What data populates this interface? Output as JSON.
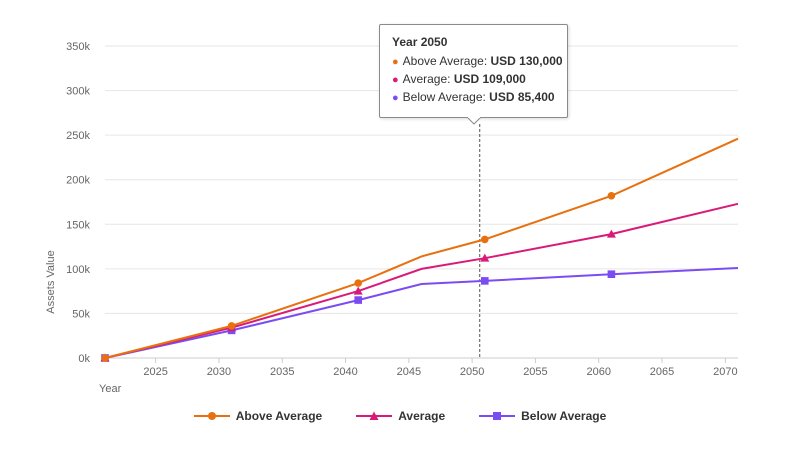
{
  "chart_data": {
    "type": "line",
    "title": "",
    "xlabel": "Year",
    "ylabel": "Assets Value",
    "xlim": [
      2021,
      2071
    ],
    "ylim": [
      0,
      350000
    ],
    "x_ticks": [
      2025,
      2030,
      2035,
      2040,
      2045,
      2050,
      2055,
      2060,
      2065,
      2070
    ],
    "y_ticks": [
      0,
      50000,
      100000,
      150000,
      200000,
      250000,
      300000,
      350000
    ],
    "y_tick_labels": [
      "0k",
      "50k",
      "100k",
      "150k",
      "200k",
      "250k",
      "300k",
      "350k"
    ],
    "grid": "horizontal",
    "legend_position": "bottom",
    "series": [
      {
        "name": "Above Average",
        "color": "#e8700e",
        "marker": "circle",
        "points": [
          [
            2021,
            0
          ],
          [
            2031,
            36000
          ],
          [
            2041,
            84000
          ],
          [
            2046,
            114000
          ],
          [
            2051,
            133000
          ],
          [
            2061,
            182000
          ],
          [
            2071,
            246000
          ]
        ],
        "marked": [
          2021,
          2031,
          2041,
          2051,
          2061
        ]
      },
      {
        "name": "Average",
        "color": "#d81b7a",
        "marker": "triangle",
        "points": [
          [
            2021,
            0
          ],
          [
            2031,
            34000
          ],
          [
            2041,
            75000
          ],
          [
            2046,
            100000
          ],
          [
            2051,
            112000
          ],
          [
            2061,
            139000
          ],
          [
            2071,
            173000
          ]
        ],
        "marked": [
          2021,
          2031,
          2041,
          2051,
          2061
        ]
      },
      {
        "name": "Below Average",
        "color": "#7b4cf2",
        "marker": "square",
        "points": [
          [
            2021,
            0
          ],
          [
            2031,
            31000
          ],
          [
            2041,
            65000
          ],
          [
            2046,
            83000
          ],
          [
            2051,
            86500
          ],
          [
            2061,
            94000
          ],
          [
            2071,
            101000
          ]
        ],
        "marked": [
          2021,
          2031,
          2041,
          2051,
          2061
        ]
      }
    ],
    "crosshair_x": 2050.6
  },
  "tooltip": {
    "title": "Year 2050",
    "rows": [
      {
        "label": "Above Average: ",
        "value": "USD 130,000",
        "color": "#e8700e"
      },
      {
        "label": "Average: ",
        "value": "USD 109,000",
        "color": "#d81b7a"
      },
      {
        "label": "Below Average: ",
        "value": "USD 85,400",
        "color": "#7b4cf2"
      }
    ],
    "bullet": "●"
  }
}
